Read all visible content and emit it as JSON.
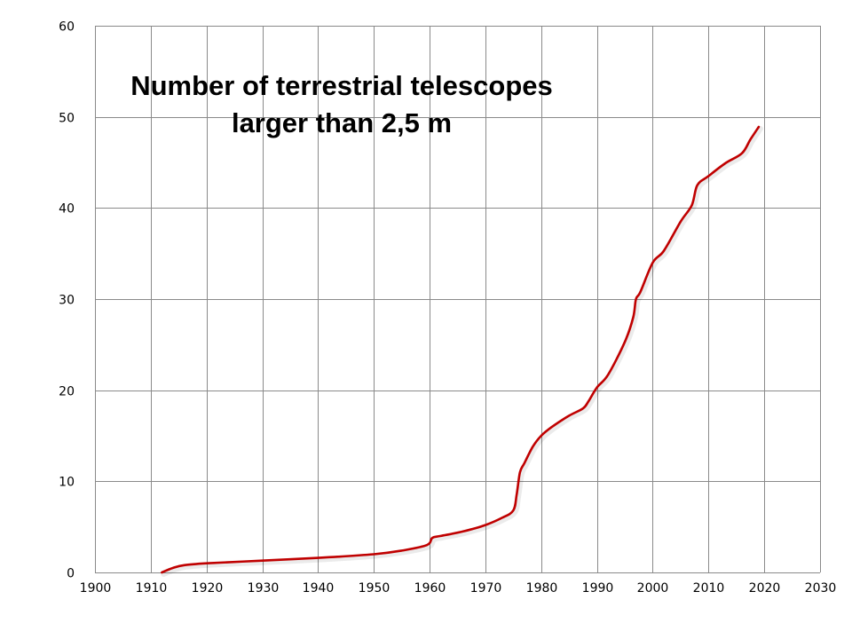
{
  "chart_data": {
    "type": "line",
    "title_lines": [
      "Number of terrestrial telescopes",
      "larger than 2,5 m"
    ],
    "xlabel": "",
    "ylabel": "",
    "xlim": [
      1900,
      2030
    ],
    "ylim": [
      0,
      60
    ],
    "x_ticks": [
      1900,
      1910,
      1920,
      1930,
      1940,
      1950,
      1960,
      1970,
      1980,
      1990,
      2000,
      2010,
      2020,
      2030
    ],
    "y_ticks": [
      0,
      10,
      20,
      30,
      40,
      50,
      60
    ],
    "grid": true,
    "series": [
      {
        "color": "#c00000",
        "x": [
          1912,
          1914,
          1916,
          1920,
          1930,
          1940,
          1950,
          1955,
          1959.5,
          1960.5,
          1962,
          1966,
          1970,
          1973,
          1975,
          1975.6,
          1976.2,
          1977,
          1978.5,
          1980,
          1982,
          1985,
          1987.5,
          1988.5,
          1990,
          1992,
          1995,
          1996.5,
          1997,
          1997.8,
          2000,
          2002,
          2005,
          2007,
          2008,
          2010,
          2013,
          2016,
          2017.5,
          2019
        ],
        "y": [
          0,
          0.5,
          0.8,
          1.0,
          1.3,
          1.6,
          2.0,
          2.4,
          3.0,
          3.8,
          4.0,
          4.5,
          5.2,
          6.0,
          6.8,
          8.5,
          11.0,
          12.0,
          13.8,
          15.0,
          16.0,
          17.2,
          18.0,
          18.8,
          20.3,
          21.7,
          25.3,
          28.0,
          30.0,
          30.8,
          34.0,
          35.3,
          38.5,
          40.3,
          42.5,
          43.5,
          44.9,
          46.0,
          47.5,
          48.9
        ]
      }
    ]
  }
}
